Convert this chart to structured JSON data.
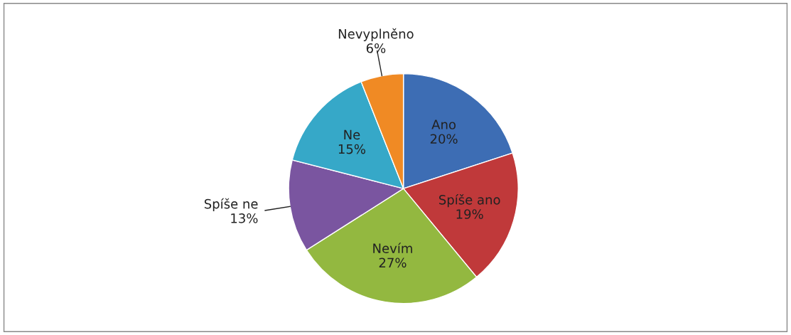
{
  "chart_data": {
    "type": "pie",
    "categories": [
      "Ano",
      "Spíše ano",
      "Nevím",
      "Spíše ne",
      "Ne",
      "Nevyplněno"
    ],
    "values": [
      20,
      19,
      27,
      13,
      15,
      6
    ],
    "value_labels": [
      "20%",
      "19%",
      "27%",
      "13%",
      "15%",
      "6%"
    ],
    "colors": [
      "#3d6db4",
      "#c0393a",
      "#93b840",
      "#7a55a0",
      "#36a8c8",
      "#f08a24"
    ]
  }
}
